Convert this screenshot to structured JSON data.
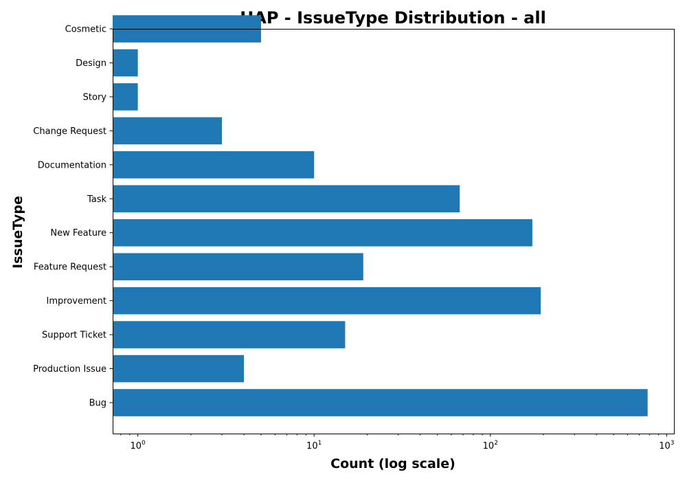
{
  "chart_data": {
    "type": "bar",
    "orientation": "horizontal",
    "title": "HAP - IssueType Distribution - all",
    "xlabel": "Count (log scale)",
    "ylabel": "IssueType",
    "xscale": "log",
    "xlim": [
      0.72,
      1100
    ],
    "x_major_ticks": [
      {
        "value": 1,
        "base": "10",
        "exp": "0"
      },
      {
        "value": 10,
        "base": "10",
        "exp": "1"
      },
      {
        "value": 100,
        "base": "10",
        "exp": "2"
      },
      {
        "value": 1000,
        "base": "10",
        "exp": "3"
      }
    ],
    "categories": [
      "Bug",
      "Production Issue",
      "Support Ticket",
      "Improvement",
      "Feature Request",
      "New Feature",
      "Task",
      "Documentation",
      "Change Request",
      "Story",
      "Design",
      "Cosmetic"
    ],
    "values": [
      780,
      4,
      15,
      193,
      19,
      173,
      67,
      10,
      3,
      1,
      1,
      5
    ],
    "bar_color": "#1f77b4",
    "grid": false,
    "legend": "none"
  }
}
